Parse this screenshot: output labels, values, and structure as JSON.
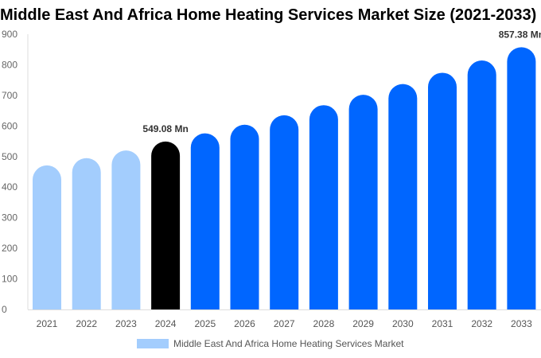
{
  "chart_data": {
    "type": "bar",
    "title": "Middle East And Africa Home Heating Services Market Size (2021-2033)",
    "categories": [
      "2021",
      "2022",
      "2023",
      "2024",
      "2025",
      "2026",
      "2027",
      "2028",
      "2029",
      "2030",
      "2031",
      "2032",
      "2033"
    ],
    "series": [
      {
        "name": "Middle East And Africa Home Heating Services Market",
        "values": [
          471,
          495,
          520,
          549.08,
          576,
          604,
          635,
          668,
          702,
          737,
          774,
          814,
          857.38
        ]
      }
    ],
    "data_labels": {
      "2024": "549.08 Mn",
      "2033": "857.38 Mn"
    },
    "ylim": [
      0,
      900
    ],
    "yticks": [
      0,
      100,
      200,
      300,
      400,
      500,
      600,
      700,
      800,
      900
    ],
    "grid": false,
    "legend": "bottom",
    "colors": {
      "historical": "#a3cdfd",
      "base_year": "#000000",
      "forecast": "#0066ff"
    },
    "historical_years": [
      "2021",
      "2022",
      "2023"
    ],
    "base_year": "2024"
  }
}
